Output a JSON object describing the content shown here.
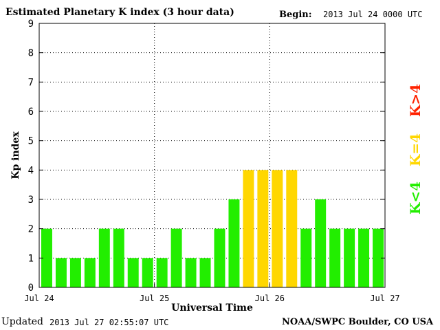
{
  "header": {
    "title": "Estimated Planetary K index (3 hour data)",
    "begin_label": "Begin:",
    "begin_value": "2013 Jul 24 0000 UTC"
  },
  "footer": {
    "updated_label": "Updated",
    "updated_value": "2013 Jul 27 02:55:07 UTC",
    "credit": "NOAA/SWPC Boulder, CO USA"
  },
  "legend": [
    {
      "label": "K<4",
      "color": "#22ee00"
    },
    {
      "label": "K=4",
      "color": "#ffd700"
    },
    {
      "label": "K>4",
      "color": "#ff2200"
    }
  ],
  "chart_data": {
    "type": "bar",
    "title": "Estimated Planetary K index (3 hour data)",
    "xlabel": "Universal Time",
    "ylabel": "Kp index",
    "ylim": [
      0,
      9
    ],
    "yticks": [
      0,
      1,
      2,
      3,
      4,
      5,
      6,
      7,
      8,
      9
    ],
    "xticks": [
      "Jul 24",
      "Jul 25",
      "Jul 26",
      "Jul 27"
    ],
    "grid": true,
    "values": [
      2,
      1,
      1,
      1,
      2,
      2,
      1,
      1,
      1,
      2,
      1,
      1,
      2,
      3,
      4,
      4,
      4,
      4,
      2,
      3,
      2,
      2,
      2,
      2
    ],
    "colors": {
      "below_4": "#22ee00",
      "equal_4": "#ffd700",
      "above_4": "#ff2200"
    }
  }
}
